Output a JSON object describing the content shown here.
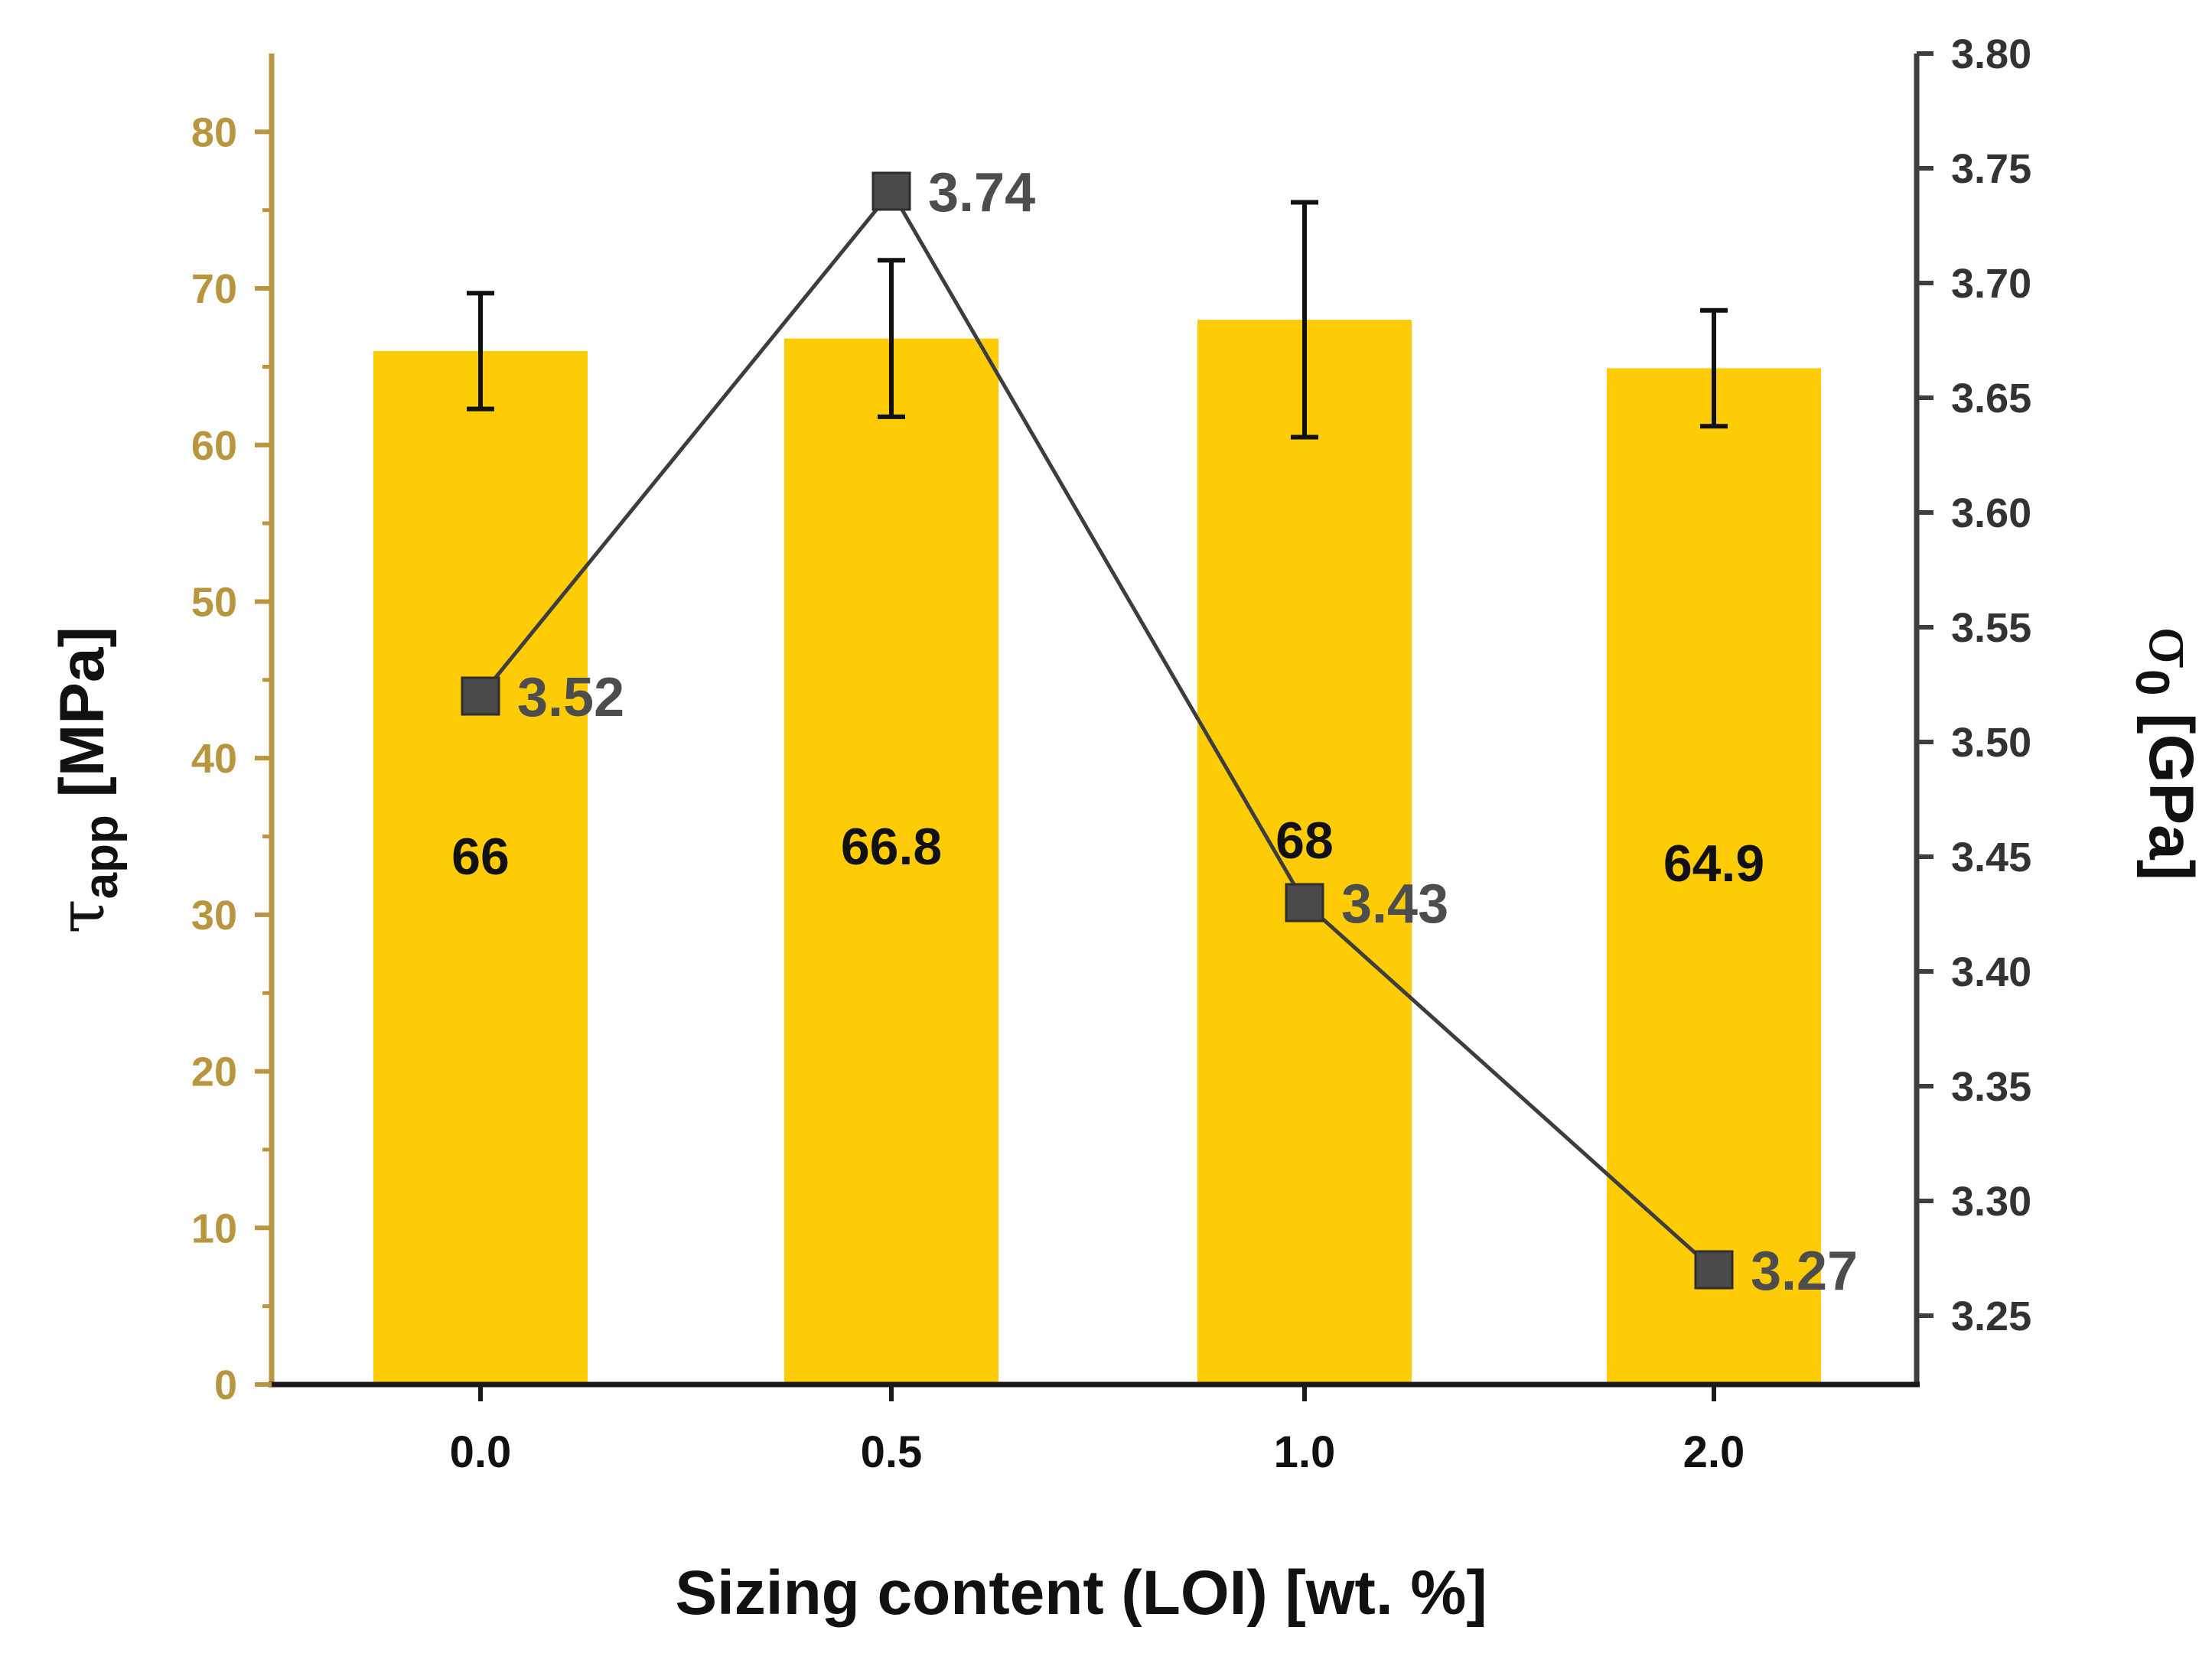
{
  "chart_data": {
    "type": "bar",
    "categories": [
      "0.0",
      "0.5",
      "1.0",
      "2.0"
    ],
    "xlabel": "Sizing content (LOI) [wt. %]",
    "series": [
      {
        "name": "τapp",
        "axis": "left",
        "kind": "bar",
        "values": [
          66,
          66.8,
          68,
          64.9
        ],
        "labels": [
          "66",
          "66.8",
          "68",
          "64.9"
        ],
        "error": [
          3.7,
          5.0,
          7.5,
          3.7
        ]
      },
      {
        "name": "σ0",
        "axis": "right",
        "kind": "line",
        "values": [
          3.52,
          3.74,
          3.43,
          3.27
        ],
        "labels": [
          "3.52",
          "3.74",
          "3.43",
          "3.27"
        ]
      }
    ],
    "y_left": {
      "label_symbol": "τ",
      "label_sub": "app",
      "label_unit": " [MPa]",
      "ylim": [
        0,
        85
      ],
      "ticks": [
        "0",
        "10",
        "20",
        "30",
        "40",
        "50",
        "60",
        "70",
        "80"
      ]
    },
    "y_right": {
      "label_symbol": "σ",
      "label_sub": "0",
      "label_unit": " [GPa]",
      "ylim": [
        3.22,
        3.8
      ],
      "ticks": [
        "3.25",
        "3.30",
        "3.35",
        "3.40",
        "3.45",
        "3.50",
        "3.55",
        "3.60",
        "3.65",
        "3.70",
        "3.75",
        "3.80"
      ]
    },
    "colors": {
      "bar": "#FECC07",
      "left_axis": "#B8963F",
      "right_axis": "#3d3d3d",
      "line": "#3d3d3d",
      "marker": "#4a4a4a",
      "error": "#111111"
    }
  }
}
